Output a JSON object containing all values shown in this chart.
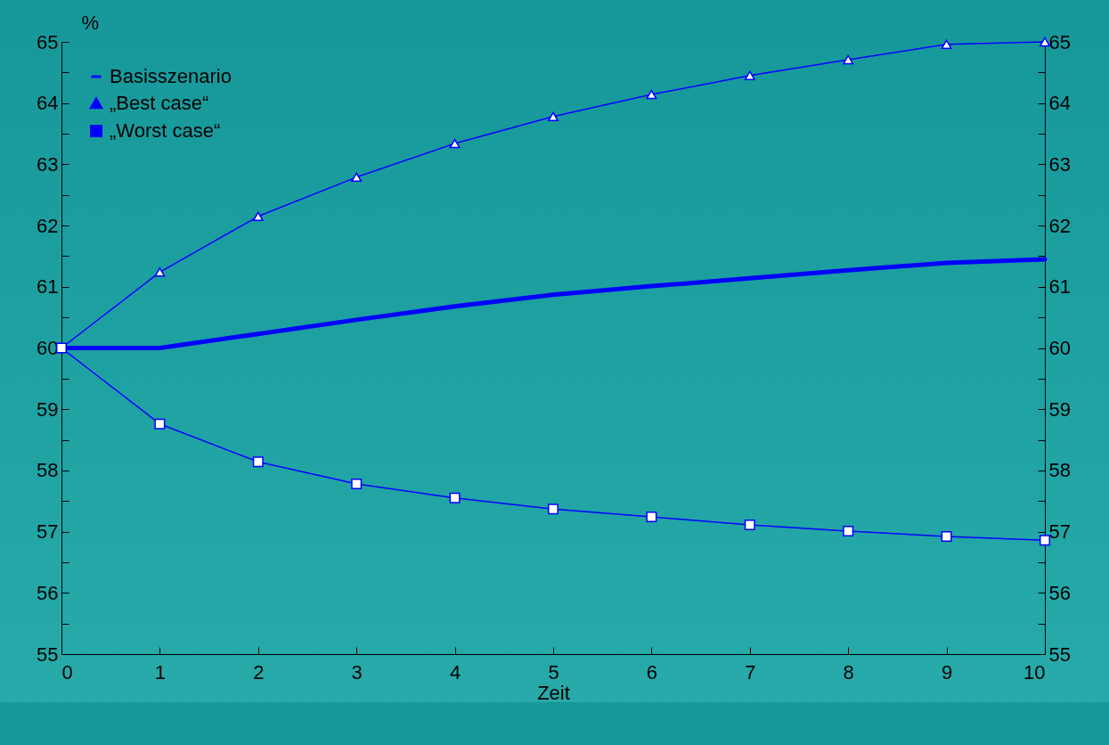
{
  "chart_data": {
    "type": "line",
    "xlabel": "Zeit",
    "ylabel": "%",
    "x": [
      0,
      1,
      2,
      3,
      4,
      5,
      6,
      7,
      8,
      9,
      10
    ],
    "series": [
      {
        "name": "Basisszenario",
        "color": "#0000ff",
        "marker": "none",
        "values": [
          60,
          60,
          60.23,
          60.46,
          60.68,
          60.87,
          61.01,
          61.14,
          61.27,
          61.39,
          61.45
        ]
      },
      {
        "name": "„Best case“",
        "color": "#0000ff",
        "marker": "triangle",
        "values": [
          60,
          61.24,
          62.15,
          62.79,
          63.34,
          63.78,
          64.14,
          64.45,
          64.71,
          64.96,
          65.0
        ]
      },
      {
        "name": "„Worst case“",
        "color": "#0000ff",
        "marker": "square",
        "values": [
          60,
          58.76,
          58.14,
          57.78,
          57.55,
          57.37,
          57.24,
          57.11,
          57.01,
          56.92,
          56.86
        ]
      }
    ],
    "xlim": [
      0,
      10
    ],
    "xticks": [
      0,
      1,
      2,
      3,
      4,
      5,
      6,
      7,
      8,
      9,
      10
    ],
    "ylim": [
      55,
      65
    ],
    "yticks": [
      55,
      {
        "value": 55.5,
        "label": null
      },
      56,
      {
        "value": 56.5,
        "label": null
      },
      57,
      {
        "value": 57.5,
        "label": null
      },
      58,
      {
        "value": 58.5,
        "label": null
      },
      59,
      {
        "value": 59.5,
        "label": null
      },
      60,
      {
        "value": 60.5,
        "label": null
      },
      61,
      {
        "value": 61.5,
        "label": null
      },
      62,
      {
        "value": 62.5,
        "label": null
      },
      63,
      {
        "value": 63.5,
        "label": null
      },
      64,
      {
        "value": 64.5,
        "label": null
      },
      65
    ],
    "y2lim": [
      55,
      65
    ],
    "y2ticks": [
      55,
      {
        "value": 55.5,
        "label": null
      },
      56,
      {
        "value": 56.5,
        "label": null
      },
      57,
      {
        "value": 57.5,
        "label": null
      },
      58,
      {
        "value": 58.5,
        "label": null
      },
      59,
      {
        "value": 59.5,
        "label": null
      },
      60,
      {
        "value": 60.5,
        "label": null
      },
      61,
      {
        "value": 61.5,
        "label": null
      },
      62,
      {
        "value": 62.5,
        "label": null
      },
      63,
      {
        "value": 63.5,
        "label": null
      },
      64,
      {
        "value": 64.5,
        "label": null
      },
      65
    ],
    "grid": false,
    "legend": "top left"
  }
}
